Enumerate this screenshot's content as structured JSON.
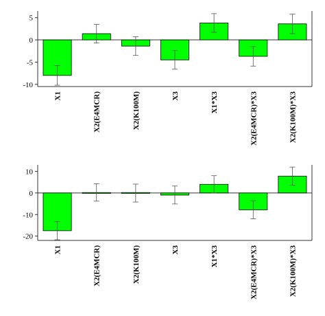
{
  "chart_data": [
    {
      "type": "bar",
      "categories": [
        "X1",
        "X2(E4MCR)",
        "X2(K100M)",
        "X3",
        "X1*X3",
        "X2(E4MCR)*X3",
        "X2(K100M)*X3"
      ],
      "values": [
        -8.0,
        1.4,
        -1.4,
        -4.5,
        3.8,
        -3.7,
        3.6
      ],
      "error_low": [
        -10.2,
        -0.7,
        -3.5,
        -6.6,
        1.7,
        -5.9,
        1.4
      ],
      "error_high": [
        -5.8,
        3.5,
        0.7,
        -2.4,
        5.9,
        -1.5,
        5.8
      ],
      "ylim": [
        -10.5,
        6.5
      ],
      "yticks": [
        5,
        0,
        -5,
        -10
      ],
      "bar_color": "#00ff00",
      "grid": false
    },
    {
      "type": "bar",
      "categories": [
        "X1",
        "X2(E4MCR)",
        "X2(K100M)",
        "X3",
        "X1*X3",
        "X2(E4MCR)*X3",
        "X2(K100M)*X3"
      ],
      "values": [
        -17.5,
        0.3,
        -0.2,
        -1.0,
        4.0,
        -7.8,
        7.8
      ],
      "error_low": [
        -21.7,
        -3.8,
        -4.2,
        -5.1,
        -0.1,
        -12.0,
        3.6
      ],
      "error_high": [
        -13.3,
        4.3,
        4.1,
        3.2,
        8.0,
        -3.6,
        12.0
      ],
      "ylim": [
        -22,
        13
      ],
      "yticks": [
        10,
        0,
        -10,
        -20
      ],
      "bar_color": "#00ff00",
      "grid": false
    }
  ]
}
